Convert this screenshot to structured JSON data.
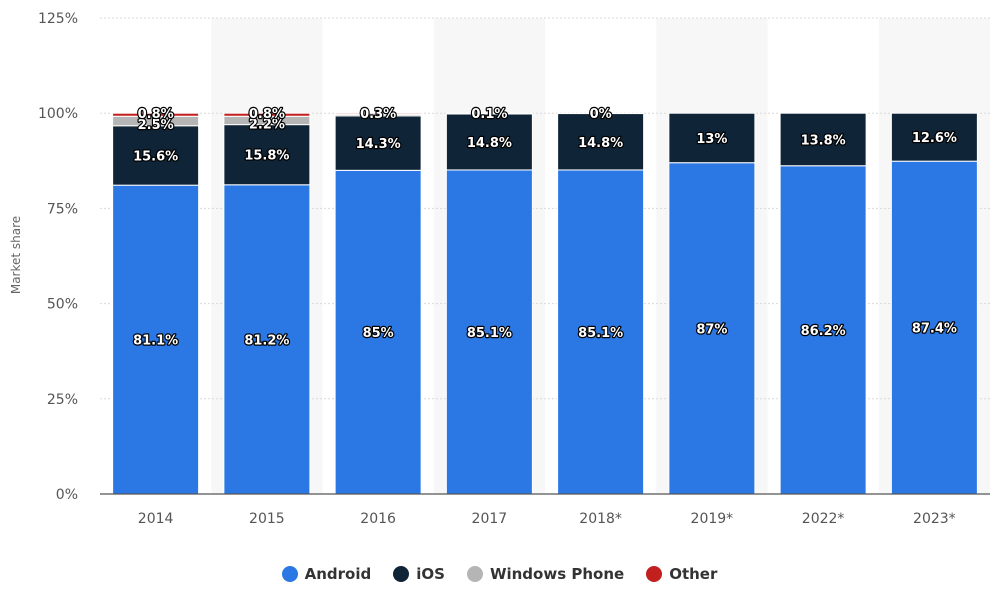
{
  "chart_data": {
    "type": "bar",
    "stacked": true,
    "title": "",
    "xlabel": "",
    "ylabel": "Market share",
    "ylim": [
      0,
      125
    ],
    "y_ticks": [
      "0%",
      "25%",
      "50%",
      "75%",
      "100%",
      "125%"
    ],
    "categories": [
      "2014",
      "2015",
      "2016",
      "2017",
      "2018*",
      "2019*",
      "2022*",
      "2023*"
    ],
    "series": [
      {
        "name": "Android",
        "color": "#2b78e4",
        "values": [
          81.1,
          81.2,
          85,
          85.1,
          85.1,
          87,
          86.2,
          87.4
        ],
        "labels": [
          "81.1%",
          "81.2%",
          "85%",
          "85.1%",
          "85.1%",
          "87%",
          "86.2%",
          "87.4%"
        ]
      },
      {
        "name": "iOS",
        "color": "#0f2436",
        "values": [
          15.6,
          15.8,
          14.3,
          14.8,
          14.8,
          13,
          13.8,
          12.6
        ],
        "labels": [
          "15.6%",
          "15.8%",
          "14.3%",
          "14.8%",
          "14.8%",
          "13%",
          "13.8%",
          "12.6%"
        ]
      },
      {
        "name": "Windows Phone",
        "color": "#b5b5b5",
        "values": [
          2.5,
          2.2,
          0.4,
          0,
          0,
          0,
          0,
          0
        ],
        "labels": [
          "2.5%",
          "2.2%",
          "",
          "",
          "",
          "",
          "",
          ""
        ]
      },
      {
        "name": "Other",
        "color": "#c21f1f",
        "values": [
          0.8,
          0.8,
          0.3,
          0.1,
          0,
          0,
          0,
          0
        ],
        "labels": [
          "0.8%",
          "0.8%",
          "0.3%",
          "0.1%",
          "0%",
          "",
          "",
          ""
        ]
      }
    ],
    "legend_position": "bottom-center",
    "grid": true
  },
  "legend": [
    {
      "label": "Android",
      "color": "#2b78e4"
    },
    {
      "label": "iOS",
      "color": "#0f2436"
    },
    {
      "label": "Windows Phone",
      "color": "#b5b5b5"
    },
    {
      "label": "Other",
      "color": "#c21f1f"
    }
  ]
}
